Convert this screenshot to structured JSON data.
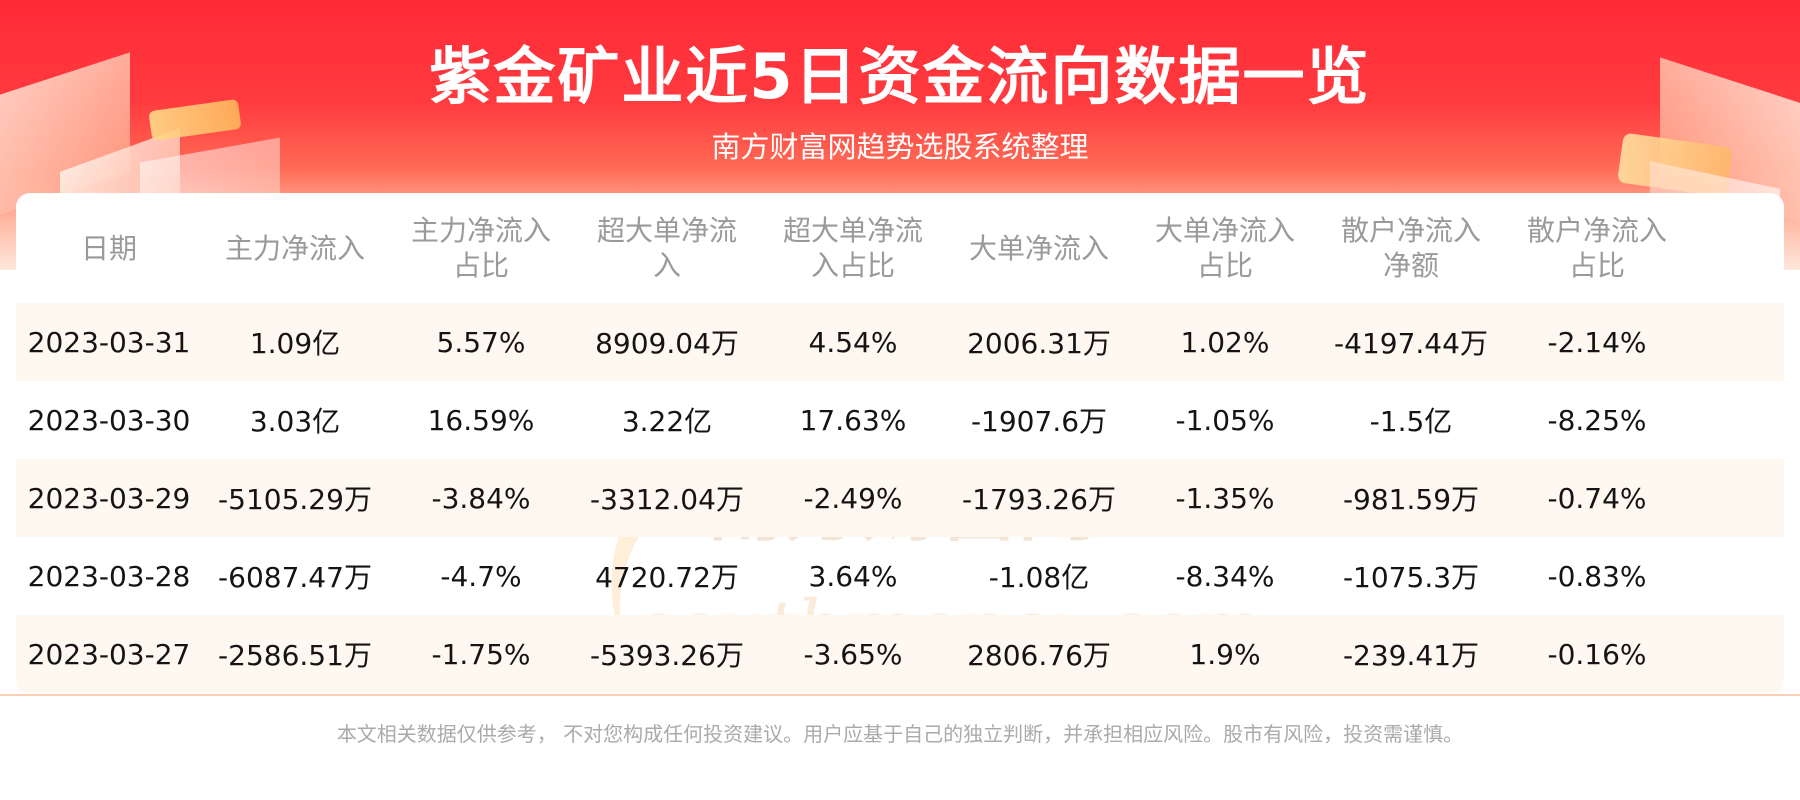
{
  "header": {
    "title": "紫金矿业近5日资金流向数据一览",
    "subtitle": "南方财富网趋势选股系统整理"
  },
  "table": {
    "columns": [
      "日期",
      "主力净流入",
      "主力净流入\n占比",
      "超大单净流\n入",
      "超大单净流\n入占比",
      "大单净流入",
      "大单净流入\n占比",
      "散户净流入\n净额",
      "散户净流入\n占比"
    ],
    "rows": [
      [
        "2023-03-31",
        "1.09亿",
        "5.57%",
        "8909.04万",
        "4.54%",
        "2006.31万",
        "1.02%",
        "-4197.44万",
        "-2.14%"
      ],
      [
        "2023-03-30",
        "3.03亿",
        "16.59%",
        "3.22亿",
        "17.63%",
        "-1907.6万",
        "-1.05%",
        "-1.5亿",
        "-8.25%"
      ],
      [
        "2023-03-29",
        "-5105.29万",
        "-3.84%",
        "-3312.04万",
        "-2.49%",
        "-1793.26万",
        "-1.35%",
        "-981.59万",
        "-0.74%"
      ],
      [
        "2023-03-28",
        "-6087.47万",
        "-4.7%",
        "4720.72万",
        "3.64%",
        "-1.08亿",
        "-8.34%",
        "-1075.3万",
        "-0.83%"
      ],
      [
        "2023-03-27",
        "-2586.51万",
        "-1.75%",
        "-5393.26万",
        "-3.65%",
        "2806.76万",
        "1.9%",
        "-239.41万",
        "-0.16%"
      ]
    ]
  },
  "watermark": {
    "cn": "南方财富网",
    "en": "southmoney.com"
  },
  "footer": {
    "disclaimer": "本文相关数据仅供参考， 不对您构成任何投资建议。用户应基于自己的独立判断，并承担相应风险。股市有风险，投资需谨慎。"
  },
  "colors": {
    "banner_red": "#ff2a37",
    "row_alt": "#fff8f0",
    "header_text": "#9a9a9a",
    "disclaimer_text": "#aaaaaa"
  }
}
